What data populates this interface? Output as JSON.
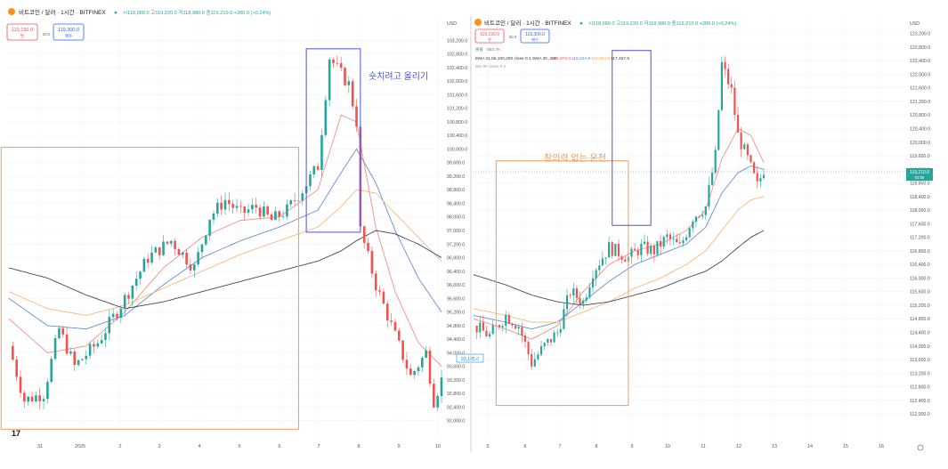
{
  "colors": {
    "up": "#26a69a",
    "down": "#ef5350",
    "ema21": "#f0837d",
    "ema55": "#5b7fd6",
    "ema100": "#f6b26b",
    "ema200": "#333333",
    "box_blue": "#5b63e0",
    "box_orange": "#f4a460",
    "annotation_blue": "#4a52d8",
    "annotation_orange": "#f09a48",
    "grid": "#f0f3fa",
    "axis_text": "#555555",
    "last_price_bg": "#26a69a",
    "blue_price_tag": "#1e88e5"
  },
  "left_panel": {
    "title": "비트코인 / 달러 · 1시간 · BITFINEX",
    "ohlc": "시118,980.0 고119,220.0 저118,980.0 종119,210.0 +280.0 (+0.24%)",
    "sell_price": "119,190.0",
    "sell_label": "팔",
    "mid_value": "30.0",
    "buy_price": "119,300.0",
    "buy_label": "매수",
    "last_price_tag": "93,185.0",
    "logo_text": "17",
    "annotation_text": "숏치려고 올리기"
  },
  "right_panel": {
    "title": "비트코인 / 달러 · 1시간 · BITFINEX",
    "ohlc": "시118,980.0 고119,220.0 저118,980.0 종119,210.0 +280.0 (+0.24%)",
    "sell_price": "119,190.0",
    "sell_label": "팔",
    "mid_value": "30.0",
    "buy_price": "119,300.0",
    "buy_label": "매수",
    "indicator_line_1": "볼륨 · 853.7K",
    "indicator_line_2": "EMA 21,55,100,200 close 0 1 SMA 30 ,200",
    "indicator_values": [
      "119,370.0",
      "119,224.9",
      "118,424.9",
      "117,467.5"
    ],
    "indicator_line_3": "MA 30 close 0 2",
    "last_price_tag": "119,210.0",
    "last_price_sub": "02:56",
    "annotation_text": "창의력 없는 운전"
  },
  "chart_data": [
    {
      "type": "candlestick",
      "title": "비트코인 / 달러 · 1시간 · BITFINEX",
      "y_unit": "USD",
      "ylim": [
        91600,
        103600
      ],
      "y_ticks": [
        92000,
        92400,
        92800,
        93200,
        93600,
        94000,
        94400,
        94800,
        95200,
        95600,
        96000,
        96400,
        96800,
        97200,
        97600,
        98000,
        98400,
        98800,
        99200,
        99600,
        100000,
        100400,
        100800,
        101200,
        101600,
        102000,
        102400,
        102800,
        103200
      ],
      "y_tick_labels": [
        "92,000.0",
        "92,400.0",
        "92,800.0",
        "93,200.0",
        "93,600.0",
        "94,000.0",
        "94,400.0",
        "94,800.0",
        "95,200.0",
        "95,600.0",
        "96,000.0",
        "96,400.0",
        "96,800.0",
        "97,200.0",
        "97,600.0",
        "98,000.0",
        "98,400.0",
        "98,800.0",
        "99,200.0",
        "99,600.0",
        "100,000.0",
        "100,400.0",
        "100,800.0",
        "101,200.0",
        "101,600.0",
        "102,000.0",
        "102,400.0",
        "102,800.0",
        "103,200.0"
      ],
      "x_tick_labels": [
        "31",
        "2025",
        "2",
        "3",
        "4",
        "5",
        "6",
        "7",
        "8",
        "9",
        "10"
      ],
      "close_path": [
        [
          0,
          94200
        ],
        [
          4,
          92600
        ],
        [
          9,
          92800
        ],
        [
          13,
          94700
        ],
        [
          17,
          93600
        ],
        [
          23,
          94300
        ],
        [
          30,
          95600
        ],
        [
          36,
          96800
        ],
        [
          42,
          97300
        ],
        [
          48,
          96500
        ],
        [
          52,
          98000
        ],
        [
          56,
          98500
        ],
        [
          60,
          98100
        ],
        [
          64,
          98300
        ],
        [
          68,
          97900
        ],
        [
          72,
          98200
        ],
        [
          76,
          98800
        ],
        [
          80,
          99500
        ],
        [
          83,
          102700
        ],
        [
          86,
          102200
        ],
        [
          88,
          101900
        ],
        [
          90,
          100800
        ],
        [
          91,
          97600
        ],
        [
          95,
          96000
        ],
        [
          100,
          94500
        ],
        [
          104,
          93300
        ],
        [
          108,
          94000
        ],
        [
          110,
          92600
        ],
        [
          112,
          93200
        ]
      ],
      "ma_series": [
        {
          "name": "EMA 21",
          "values": [
            [
              0,
              95000
            ],
            [
              10,
              94000
            ],
            [
              20,
              94200
            ],
            [
              30,
              95200
            ],
            [
              40,
              96500
            ],
            [
              50,
              97400
            ],
            [
              60,
              97900
            ],
            [
              70,
              98000
            ],
            [
              80,
              98800
            ],
            [
              86,
              101000
            ],
            [
              90,
              100800
            ],
            [
              95,
              97700
            ],
            [
              100,
              95800
            ],
            [
              106,
              94300
            ],
            [
              112,
              93600
            ]
          ]
        },
        {
          "name": "EMA 55",
          "values": [
            [
              0,
              95600
            ],
            [
              10,
              94800
            ],
            [
              20,
              94700
            ],
            [
              30,
              95100
            ],
            [
              40,
              96000
            ],
            [
              50,
              96800
            ],
            [
              60,
              97300
            ],
            [
              70,
              97700
            ],
            [
              80,
              98200
            ],
            [
              86,
              99300
            ],
            [
              90,
              100000
            ],
            [
              95,
              99000
            ],
            [
              100,
              97600
            ],
            [
              106,
              96200
            ],
            [
              112,
              95200
            ]
          ]
        },
        {
          "name": "EMA 100",
          "values": [
            [
              0,
              95800
            ],
            [
              10,
              95300
            ],
            [
              20,
              95100
            ],
            [
              30,
              95400
            ],
            [
              40,
              95900
            ],
            [
              50,
              96400
            ],
            [
              60,
              96900
            ],
            [
              70,
              97300
            ],
            [
              80,
              97700
            ],
            [
              86,
              98300
            ],
            [
              90,
              98800
            ],
            [
              95,
              98700
            ],
            [
              100,
              98100
            ],
            [
              106,
              97400
            ],
            [
              112,
              96700
            ]
          ]
        },
        {
          "name": "EMA 200",
          "values": [
            [
              0,
              96500
            ],
            [
              10,
              96200
            ],
            [
              20,
              95700
            ],
            [
              30,
              95300
            ],
            [
              40,
              95500
            ],
            [
              50,
              95800
            ],
            [
              60,
              96100
            ],
            [
              70,
              96400
            ],
            [
              80,
              96700
            ],
            [
              86,
              97000
            ],
            [
              90,
              97300
            ],
            [
              95,
              97600
            ],
            [
              100,
              97500
            ],
            [
              106,
              97200
            ],
            [
              112,
              96800
            ]
          ]
        }
      ],
      "boxes": [
        {
          "label": "",
          "x": [
            -2,
            75
          ],
          "y": [
            91750,
            100050
          ]
        },
        {
          "label": "숏치려고 올리기",
          "x": [
            77,
            91
          ],
          "y": [
            97550,
            102950
          ]
        }
      ]
    },
    {
      "type": "candlestick",
      "title": "비트코인 / 달러 · 1시간 · BITFINEX",
      "y_unit": "USD",
      "ylim": [
        111400,
        123400
      ],
      "y_ticks": [
        112000,
        112400,
        112800,
        113200,
        113600,
        114000,
        114400,
        114800,
        115200,
        115600,
        116000,
        116400,
        116800,
        117200,
        117600,
        118000,
        118400,
        118800,
        119200,
        119600,
        120000,
        120400,
        120800,
        121200,
        121600,
        122000,
        122400,
        122800,
        123200
      ],
      "y_tick_labels": [
        "112,000.0",
        "112,400.0",
        "112,800.0",
        "113,200.0",
        "113,600.0",
        "114,000.0",
        "114,400.0",
        "114,800.0",
        "115,200.0",
        "115,600.0",
        "116,000.0",
        "116,400.0",
        "116,800.0",
        "117,200.0",
        "117,600.0",
        "118,000.0",
        "118,400.0",
        "118,800.0",
        "119,200.0",
        "119,600.0",
        "120,000.0",
        "120,400.0",
        "120,800.0",
        "121,200.0",
        "121,600.0",
        "122,000.0",
        "122,400.0",
        "122,800.0",
        "123,200.0"
      ],
      "x_tick_labels": [
        "5",
        "6",
        "7",
        "8",
        "9",
        "10",
        "11",
        "12",
        "13",
        "14",
        "15",
        "16"
      ],
      "close_path": [
        [
          0,
          114600
        ],
        [
          5,
          114300
        ],
        [
          10,
          114900
        ],
        [
          14,
          114600
        ],
        [
          18,
          113500
        ],
        [
          22,
          114000
        ],
        [
          26,
          114400
        ],
        [
          30,
          115600
        ],
        [
          34,
          115300
        ],
        [
          37,
          116200
        ],
        [
          42,
          116900
        ],
        [
          48,
          116600
        ],
        [
          52,
          116900
        ],
        [
          56,
          116800
        ],
        [
          60,
          117200
        ],
        [
          64,
          116900
        ],
        [
          68,
          117800
        ],
        [
          72,
          118100
        ],
        [
          75,
          119600
        ],
        [
          77,
          122300
        ],
        [
          80,
          121500
        ],
        [
          82,
          120200
        ],
        [
          85,
          119500
        ],
        [
          88,
          118700
        ],
        [
          90,
          119210
        ]
      ],
      "ma_series": [
        {
          "name": "EMA 21",
          "values": [
            [
              0,
              114800
            ],
            [
              10,
              114500
            ],
            [
              18,
              114200
            ],
            [
              26,
              114600
            ],
            [
              34,
              115600
            ],
            [
              42,
              116400
            ],
            [
              50,
              116800
            ],
            [
              58,
              117000
            ],
            [
              66,
              117400
            ],
            [
              72,
              118000
            ],
            [
              77,
              119500
            ],
            [
              82,
              120400
            ],
            [
              86,
              120200
            ],
            [
              90,
              119400
            ]
          ]
        },
        {
          "name": "EMA 55",
          "values": [
            [
              0,
              114900
            ],
            [
              10,
              114700
            ],
            [
              18,
              114500
            ],
            [
              26,
              114700
            ],
            [
              34,
              115300
            ],
            [
              42,
              115900
            ],
            [
              50,
              116400
            ],
            [
              58,
              116700
            ],
            [
              66,
              117000
            ],
            [
              72,
              117500
            ],
            [
              77,
              118500
            ],
            [
              82,
              119100
            ],
            [
              86,
              119300
            ],
            [
              90,
              119200
            ]
          ]
        },
        {
          "name": "EMA 100",
          "values": [
            [
              0,
              115100
            ],
            [
              10,
              114900
            ],
            [
              18,
              114700
            ],
            [
              26,
              114700
            ],
            [
              34,
              115000
            ],
            [
              42,
              115300
            ],
            [
              50,
              115700
            ],
            [
              58,
              116000
            ],
            [
              66,
              116400
            ],
            [
              72,
              116800
            ],
            [
              77,
              117400
            ],
            [
              82,
              118000
            ],
            [
              86,
              118300
            ],
            [
              90,
              118400
            ]
          ]
        },
        {
          "name": "EMA 200",
          "values": [
            [
              0,
              116100
            ],
            [
              10,
              115800
            ],
            [
              18,
              115500
            ],
            [
              26,
              115300
            ],
            [
              34,
              115200
            ],
            [
              42,
              115300
            ],
            [
              50,
              115500
            ],
            [
              58,
              115700
            ],
            [
              66,
              116000
            ],
            [
              72,
              116200
            ],
            [
              77,
              116500
            ],
            [
              82,
              116900
            ],
            [
              86,
              117200
            ],
            [
              90,
              117400
            ]
          ]
        }
      ],
      "boxes": [
        {
          "label": "창의력 없는 운전",
          "x": [
            7,
            48
          ],
          "y": [
            112250,
            119450
          ]
        },
        {
          "label": "",
          "x": [
            43,
            55
          ],
          "y": [
            117550,
            122700
          ]
        }
      ]
    }
  ]
}
